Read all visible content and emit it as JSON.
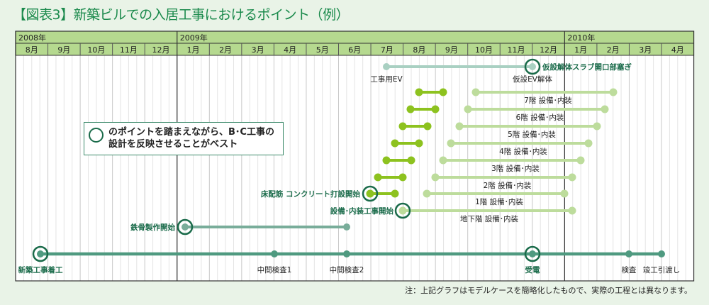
{
  "title": "【図表3】新築ビルでの入居工事におけるポイント（例）",
  "years": [
    "2008年",
    "2009年",
    "2010年"
  ],
  "months": [
    "8月",
    "9月",
    "10月",
    "11月",
    "12月",
    "1月",
    "2月",
    "3月",
    "4月",
    "5月",
    "6月",
    "7月",
    "8月",
    "9月",
    "10月",
    "11月",
    "12月",
    "1月",
    "2月",
    "3月",
    "4月"
  ],
  "callout": {
    "line1": "のポイントを踏まえながら、B･C工事の",
    "line2": "設計を反映させることがベスト"
  },
  "labels": {
    "ev_start": "工事用EV",
    "ev_end": "仮設EV解体",
    "slab": "仮設解体スラブ開口部塞ぎ",
    "floor7": "7階 設備･内装",
    "floor6": "6階 設備･内装",
    "floor5": "5階 設備･内装",
    "floor4": "4階 設備･内装",
    "floor3": "3階 設備･内装",
    "floor2": "2階 設備･内装",
    "floor1": "1階 設備･内装",
    "basement": "地下階 設備･内装",
    "concrete": "床配筋 コンクリート打設開始",
    "fitout_start": "設備･内装工事開始",
    "steel": "鉄骨製作開始",
    "m_start": "新築工事着工",
    "m_insp1": "中間検査1",
    "m_insp2": "中間検査2",
    "m_power": "受電",
    "m_insp": "検査",
    "m_handover": "竣工引渡し"
  },
  "note": "注：上記グラフはモデルケースを簡略化したもので、実際の工程とは異なります。",
  "colors": {
    "header": "#b5d98f",
    "title": "#1b8a4c",
    "main_line": "#4f9a80",
    "key_circle": "#1a6b4a",
    "ev_bar": "#a9d0c2",
    "structure_bar": "#8dc21f",
    "fitout_bar": "#bddc9c"
  }
}
